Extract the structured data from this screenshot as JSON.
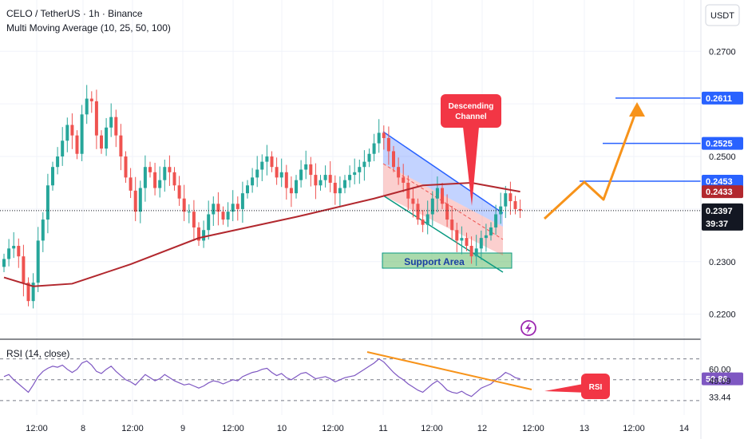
{
  "header": {
    "symbol_line": "CELO / TetherUS · 1h · Binance",
    "indicator_line": "Multi Moving Average (10, 25, 50, 100)",
    "currency_button": "USDT",
    "rsi_label": "RSI (14, close)"
  },
  "colors": {
    "up": "#26a69a",
    "down": "#ef5350",
    "ma": "#b2282e",
    "channel_blue": "#2962ff",
    "channel_green": "#089981",
    "orange": "#f7931a",
    "rsi_line": "#7e57c2",
    "level_blue": "#2962ff",
    "support_fill": "#66bb6a",
    "callout_red": "#f23645"
  },
  "chart_data": [
    {
      "type": "candlestick",
      "ylim": [
        0.216,
        0.279
      ],
      "y_ticks": [
        "0.2200",
        "0.2300",
        "0.2500",
        "0.2700"
      ],
      "x_ticks": [
        "12:00",
        "8",
        "12:00",
        "9",
        "12:00",
        "10",
        "12:00",
        "11",
        "12:00",
        "12",
        "12:00",
        "13",
        "12:00",
        "14"
      ],
      "closes": [
        0.2305,
        0.2325,
        0.233,
        0.231,
        0.226,
        0.2225,
        0.226,
        0.234,
        0.238,
        0.2445,
        0.248,
        0.25,
        0.253,
        0.256,
        0.254,
        0.2505,
        0.258,
        0.261,
        0.2605,
        0.254,
        0.2515,
        0.2555,
        0.2575,
        0.254,
        0.25,
        0.246,
        0.2435,
        0.2395,
        0.244,
        0.248,
        0.247,
        0.244,
        0.2455,
        0.248,
        0.247,
        0.2445,
        0.242,
        0.2395,
        0.2395,
        0.2365,
        0.234,
        0.236,
        0.239,
        0.241,
        0.2395,
        0.238,
        0.2395,
        0.241,
        0.24,
        0.243,
        0.2445,
        0.246,
        0.2475,
        0.249,
        0.25,
        0.248,
        0.246,
        0.247,
        0.244,
        0.243,
        0.2455,
        0.2475,
        0.2485,
        0.2465,
        0.2445,
        0.2455,
        0.2465,
        0.245,
        0.243,
        0.244,
        0.2455,
        0.2465,
        0.247,
        0.248,
        0.249,
        0.2505,
        0.2525,
        0.2545,
        0.2535,
        0.251,
        0.248,
        0.246,
        0.245,
        0.242,
        0.241,
        0.238,
        0.237,
        0.239,
        0.242,
        0.244,
        0.241,
        0.238,
        0.236,
        0.234,
        0.2345,
        0.233,
        0.231,
        0.2325,
        0.2345,
        0.235,
        0.2365,
        0.239,
        0.2405,
        0.243,
        0.2415,
        0.24,
        0.2397
      ],
      "moving_average": [
        {
          "date_index": 0,
          "value": 0.227
        },
        {
          "date_index": 6,
          "value": 0.2253
        },
        {
          "date_index": 14,
          "value": 0.2258
        },
        {
          "date_index": 26,
          "value": 0.2295
        },
        {
          "date_index": 40,
          "value": 0.2345
        },
        {
          "date_index": 60,
          "value": 0.2385
        },
        {
          "date_index": 76,
          "value": 0.242
        },
        {
          "date_index": 86,
          "value": 0.2445
        },
        {
          "date_index": 96,
          "value": 0.245
        },
        {
          "date_index": 106,
          "value": 0.2433
        }
      ],
      "price_levels": [
        {
          "label": "0.2611",
          "value": 0.2611
        },
        {
          "label": "0.2525",
          "value": 0.2525
        },
        {
          "label": "0.2453",
          "value": 0.2453
        }
      ],
      "ma_value_label": "0.2433",
      "last_price_label": "0.2397",
      "countdown_label": "39:37",
      "annotations": {
        "callout": [
          "Descending",
          "Channel"
        ],
        "support": "Support Area"
      }
    },
    {
      "type": "line",
      "name": "RSI (14, close)",
      "ylim": [
        20,
        85
      ],
      "y_labels": [
        "60.00",
        "50.86",
        "49.09",
        "33.44"
      ],
      "levels": [
        70,
        50,
        30
      ],
      "values": [
        53,
        55,
        50,
        46,
        42,
        38,
        45,
        53,
        58,
        61,
        63,
        62,
        64,
        60,
        57,
        60,
        66,
        68,
        64,
        58,
        56,
        60,
        63,
        58,
        54,
        50,
        48,
        45,
        50,
        55,
        52,
        49,
        51,
        55,
        52,
        49,
        47,
        45,
        46,
        44,
        42,
        44,
        47,
        49,
        48,
        46,
        48,
        50,
        49,
        53,
        55,
        57,
        58,
        60,
        61,
        57,
        54,
        56,
        52,
        50,
        53,
        56,
        57,
        54,
        51,
        52,
        53,
        51,
        48,
        50,
        52,
        53,
        54,
        57,
        60,
        63,
        66,
        70,
        67,
        62,
        57,
        53,
        50,
        46,
        43,
        40,
        38,
        42,
        46,
        49,
        45,
        40,
        38,
        37,
        39,
        36,
        34,
        38,
        42,
        44,
        46,
        50,
        53,
        57,
        55,
        52,
        50.86
      ],
      "annotation": "RSI"
    }
  ]
}
